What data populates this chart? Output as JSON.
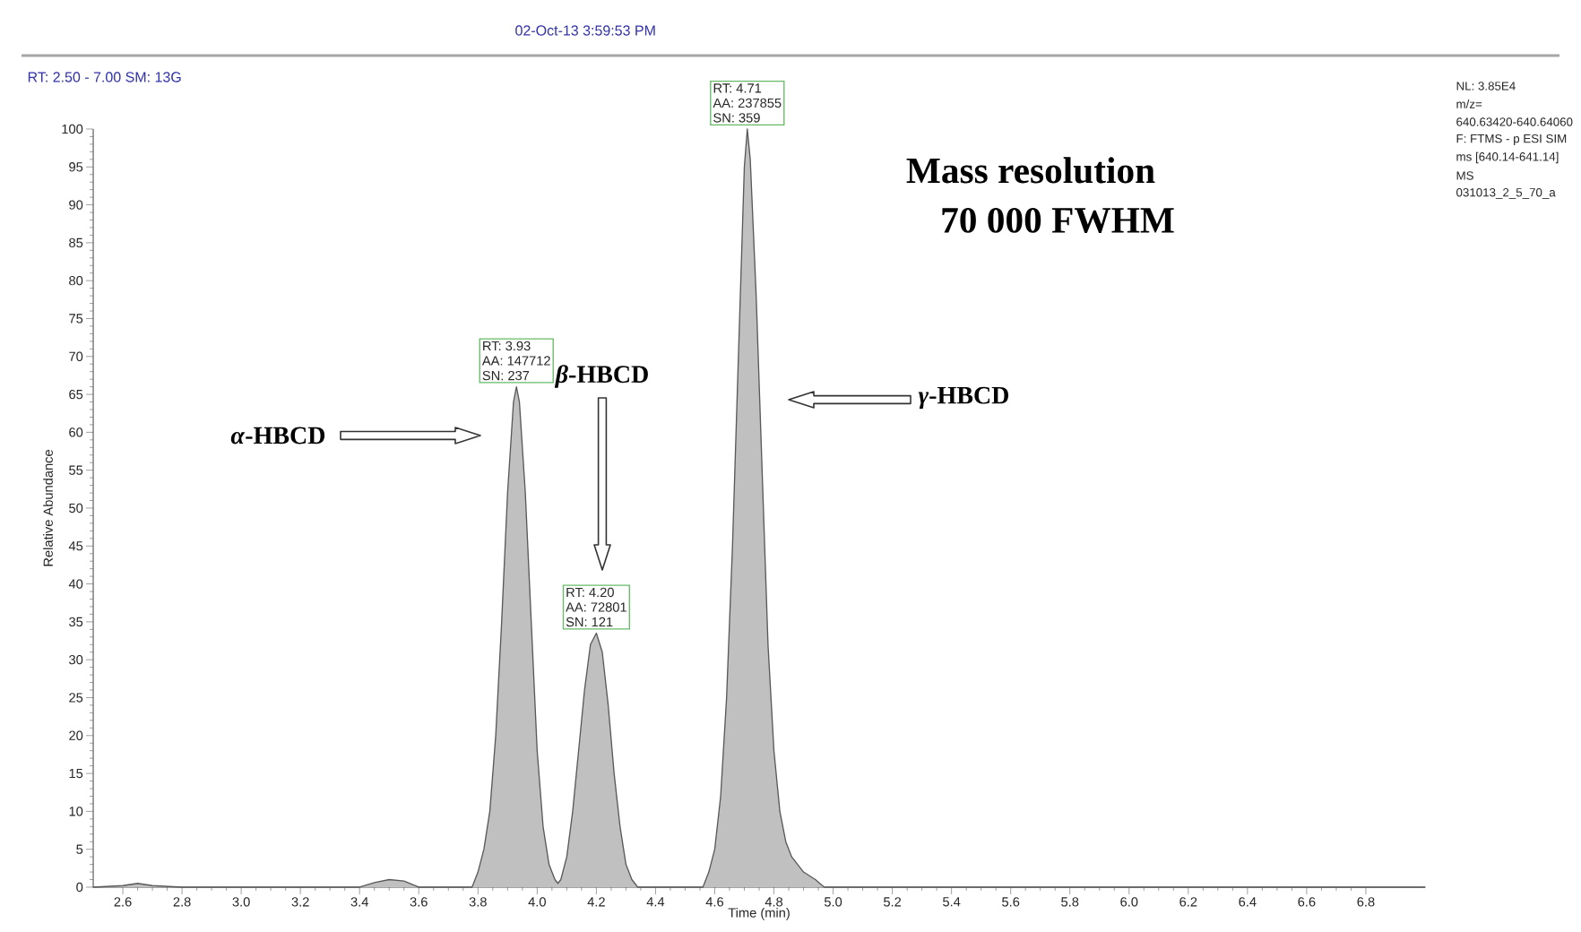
{
  "chart_data": {
    "type": "area",
    "xlabel": "Time (min)",
    "ylabel": "Relative Abundance",
    "xlim": [
      2.5,
      7.0
    ],
    "ylim": [
      0,
      100
    ],
    "xticks": [
      2.6,
      2.8,
      {
        "value": 3.0,
        "label": "3.0"
      },
      3.2,
      3.4,
      3.6,
      3.8,
      {
        "value": 4.0,
        "label": "4.0"
      },
      4.2,
      4.4,
      4.6,
      4.8,
      {
        "value": 5.0,
        "label": "5.0"
      },
      5.2,
      5.4,
      5.6,
      5.8,
      {
        "value": 6.0,
        "label": "6.0"
      },
      6.2,
      6.4,
      6.6,
      6.8
    ],
    "yticks": [
      0,
      5,
      10,
      15,
      20,
      25,
      30,
      35,
      40,
      45,
      50,
      55,
      60,
      65,
      70,
      75,
      80,
      85,
      90,
      95,
      100
    ],
    "series": [
      {
        "color": "#c0c0c0",
        "x": [
          2.5,
          2.6,
          2.65,
          2.7,
          2.8,
          3.4,
          3.45,
          3.5,
          3.55,
          3.6,
          3.78,
          3.8,
          3.82,
          3.84,
          3.86,
          3.88,
          3.9,
          3.92,
          3.93,
          3.94,
          3.96,
          3.98,
          4.0,
          4.02,
          4.04,
          4.06,
          4.07,
          4.08,
          4.1,
          4.12,
          4.14,
          4.16,
          4.18,
          4.2,
          4.22,
          4.24,
          4.26,
          4.28,
          4.3,
          4.32,
          4.34,
          4.56,
          4.58,
          4.6,
          4.62,
          4.64,
          4.66,
          4.68,
          4.7,
          4.71,
          4.72,
          4.74,
          4.76,
          4.78,
          4.8,
          4.82,
          4.84,
          4.86,
          4.88,
          4.9,
          4.94,
          4.97,
          7.0
        ],
        "values": [
          0,
          0.2,
          0.5,
          0.2,
          0,
          0,
          0.6,
          1.0,
          0.8,
          0,
          0,
          2,
          5,
          10,
          20,
          35,
          52,
          64,
          66,
          64,
          52,
          35,
          18,
          8,
          3,
          1,
          0.5,
          1,
          4,
          10,
          18,
          26,
          32,
          33.5,
          31,
          24,
          15,
          8,
          3,
          1,
          0,
          0,
          2,
          5,
          12,
          25,
          45,
          70,
          95,
          100,
          96,
          78,
          55,
          32,
          18,
          10,
          6,
          4,
          3,
          2,
          1,
          0,
          0
        ]
      }
    ],
    "annotations": [
      "02-Oct-13 3:59:53 PM",
      "RT: 2.50 - 7.00   SM: 13G",
      "NL: 3.85E4",
      "m/z=",
      "640.63420-640.64060",
      "F: FTMS - p ESI SIM",
      "ms [640.14-641.14]",
      "MS",
      "031013_2_5_70_a",
      "Mass resolution",
      "70 000 FWHM",
      "*α*-HBCD",
      "*β*-HBCD",
      "*γ*-HBCD",
      {
        "text": "RT: 3.93",
        "x": 3.93,
        "y": 66
      },
      {
        "text": "AA: 147712",
        "x": 3.93,
        "y": 66
      },
      {
        "text": "SN: 237",
        "x": 3.93,
        "y": 66
      },
      {
        "text": "RT: 4.20",
        "x": 4.2,
        "y": 33.5
      },
      {
        "text": "AA: 72801",
        "x": 4.2,
        "y": 33.5
      },
      {
        "text": "SN: 121",
        "x": 4.2,
        "y": 33.5
      },
      {
        "text": "RT: 4.71",
        "x": 4.71,
        "y": 100
      },
      {
        "text": "AA: 237855",
        "x": 4.71,
        "y": 100
      },
      {
        "text": "SN: 359",
        "x": 4.71,
        "y": 100
      }
    ]
  }
}
